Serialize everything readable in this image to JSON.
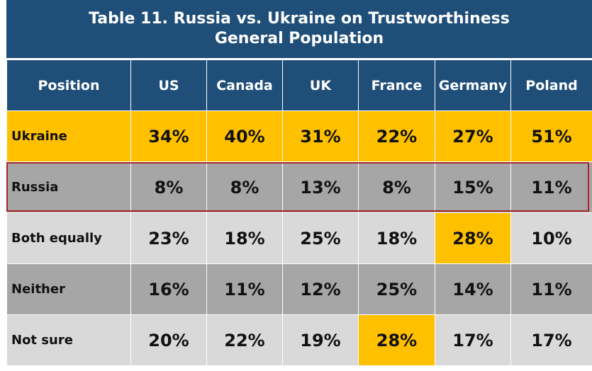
{
  "title_line1": "Table 11. Russia vs. Ukraine on Trustworthiness",
  "title_line2": "General Population",
  "chart_data": {
    "type": "table",
    "columns": [
      "Position",
      "US",
      "Canada",
      "UK",
      "France",
      "Germany",
      "Poland"
    ],
    "rows": [
      {
        "label": "Ukraine",
        "values": [
          "34%",
          "40%",
          "31%",
          "22%",
          "27%",
          "51%"
        ]
      },
      {
        "label": "Russia",
        "values": [
          "8%",
          "8%",
          "13%",
          "8%",
          "15%",
          "11%"
        ]
      },
      {
        "label": "Both equally",
        "values": [
          "23%",
          "18%",
          "25%",
          "18%",
          "28%",
          "10%"
        ]
      },
      {
        "label": "Neither",
        "values": [
          "16%",
          "11%",
          "12%",
          "25%",
          "14%",
          "11%"
        ]
      },
      {
        "label": "Not sure",
        "values": [
          "20%",
          "22%",
          "19%",
          "28%",
          "17%",
          "17%"
        ]
      }
    ],
    "highlighted_cells": [
      {
        "row": "Both equally",
        "column": "Germany"
      },
      {
        "row": "Not sure",
        "column": "France"
      }
    ],
    "outlined_row": "Russia"
  },
  "colors": {
    "header": "#1f4e79",
    "ukraine_row": "#ffc000",
    "dark_row": "#a6a6a6",
    "light_row": "#d9d9d9",
    "highlight": "#ffc000",
    "outline": "#a6262b"
  }
}
